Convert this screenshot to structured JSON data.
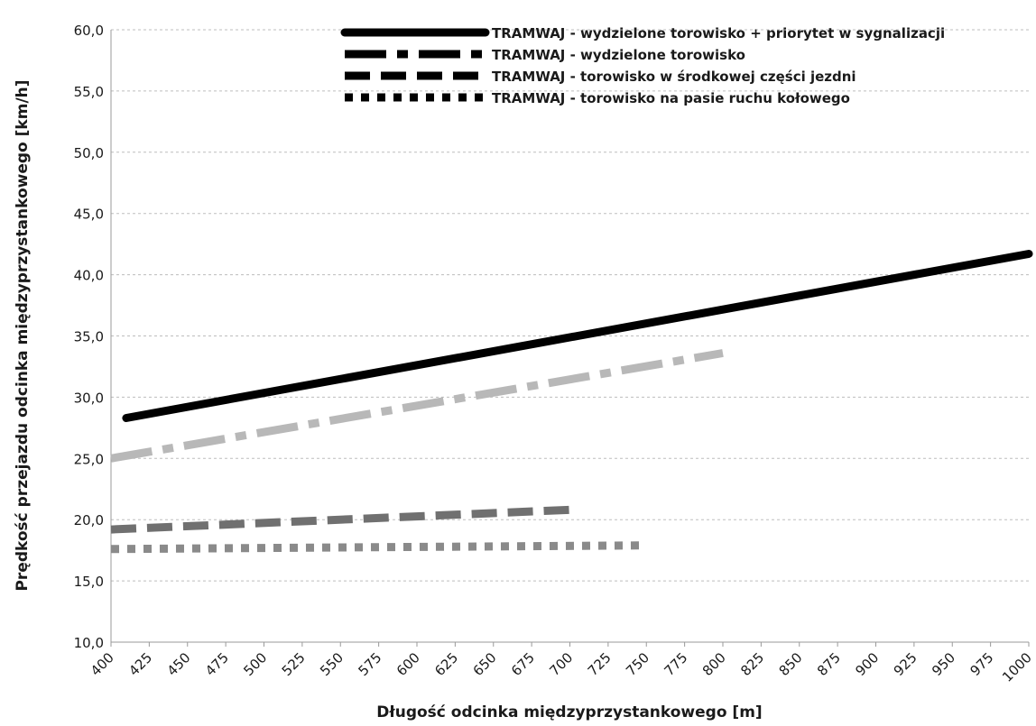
{
  "chart_data": {
    "type": "line",
    "title": "",
    "xlabel": "Długość odcinka międzyprzystankowego [m]",
    "ylabel": "Prędkość przejazdu odcinka międzyprzystankowego [km/h]",
    "xlim": [
      400,
      1000
    ],
    "ylim": [
      10,
      60
    ],
    "x_ticks": [
      "400",
      "425",
      "450",
      "475",
      "500",
      "525",
      "550",
      "575",
      "600",
      "625",
      "650",
      "675",
      "700",
      "725",
      "750",
      "775",
      "800",
      "825",
      "850",
      "875",
      "900",
      "925",
      "950",
      "975",
      "1000"
    ],
    "y_ticks": [
      "10,0",
      "15,0",
      "20,0",
      "25,0",
      "30,0",
      "35,0",
      "40,0",
      "45,0",
      "50,0",
      "55,0",
      "60,0"
    ],
    "grid": true,
    "legend_position": "top-right",
    "series": [
      {
        "name": "TRAMWAJ - wydzielone torowisko + priorytet w sygnalizacji",
        "style": "solid",
        "color": "#000000",
        "points": [
          [
            410,
            28.3
          ],
          [
            1000,
            41.7
          ]
        ]
      },
      {
        "name": "TRAMWAJ - wydzielone torowisko",
        "style": "dash-dot",
        "color": "#b8b8b8",
        "points": [
          [
            400,
            25.0
          ],
          [
            800,
            33.6
          ]
        ]
      },
      {
        "name": "TRAMWAJ - torowisko w środkowej części jezdni",
        "style": "dash",
        "color": "#707070",
        "points": [
          [
            400,
            19.2
          ],
          [
            700,
            20.8
          ]
        ]
      },
      {
        "name": "TRAMWAJ - torowisko na pasie ruchu kołowego",
        "style": "dot",
        "color": "#8a8a8a",
        "points": [
          [
            400,
            17.6
          ],
          [
            750,
            17.9
          ]
        ]
      }
    ]
  }
}
